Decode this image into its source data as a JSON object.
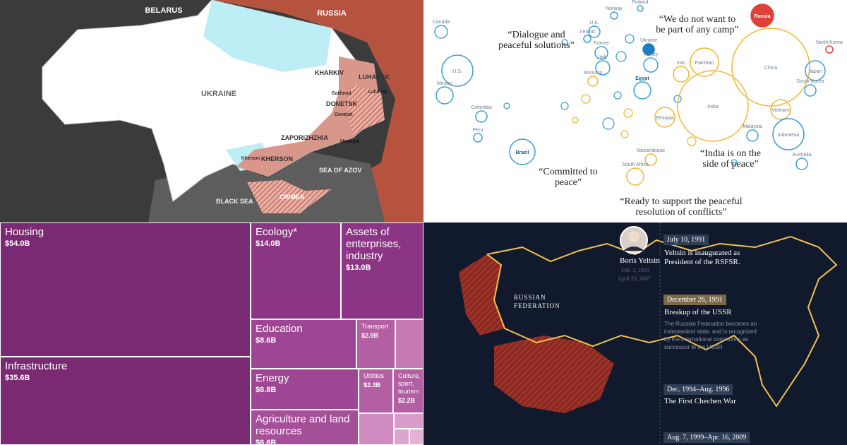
{
  "ukraine_map": {
    "labels": [
      "BELARUS",
      "RUSSIA",
      "UKRAINE",
      "KHARKIV",
      "LUHANSK",
      "Bakhmut",
      "Luhansk",
      "DONETSK",
      "Donetsk",
      "ZAPORIZHZHIA",
      "Mariupol",
      "KHERSON",
      "Kherson",
      "SEA OF AZOV",
      "BLACK SEA",
      "CRIMEA"
    ]
  },
  "un_stances": {
    "countries": [
      {
        "label": "Canada",
        "color": "#3a9fd6"
      },
      {
        "label": "U.S.",
        "color": "#3a9fd6"
      },
      {
        "label": "Mexico",
        "color": "#3a9fd6"
      },
      {
        "label": "Colombia",
        "color": "#3a9fd6"
      },
      {
        "label": "Peru",
        "color": "#3a9fd6"
      },
      {
        "label": "Brazil",
        "color": "#3a9fd6"
      },
      {
        "label": "Morocco",
        "color": "#f2b632"
      },
      {
        "label": "Ireland",
        "color": "#3a9fd6"
      },
      {
        "label": "U.K.",
        "color": "#3a9fd6"
      },
      {
        "label": "France",
        "color": "#3a9fd6"
      },
      {
        "label": "Italy",
        "color": "#3a9fd6"
      },
      {
        "label": "Norway",
        "color": "#3a9fd6"
      },
      {
        "label": "Finland",
        "color": "#3a9fd6"
      },
      {
        "label": "Ukraine",
        "color": "#1a7fc4"
      },
      {
        "label": "Turkey",
        "color": "#3a9fd6"
      },
      {
        "label": "Egypt",
        "color": "#3a9fd6"
      },
      {
        "label": "Iran",
        "color": "#f2b632"
      },
      {
        "label": "Pakistan",
        "color": "#f2b632"
      },
      {
        "label": "India",
        "color": "#f2b632"
      },
      {
        "label": "China",
        "color": "#f2b632"
      },
      {
        "label": "Russia",
        "color": "#e0413a"
      },
      {
        "label": "North Korea",
        "color": "#e0413a"
      },
      {
        "label": "Japan",
        "color": "#3a9fd6"
      },
      {
        "label": "South Korea",
        "color": "#3a9fd6"
      },
      {
        "label": "Vietnam",
        "color": "#f2b632"
      },
      {
        "label": "Indonesia",
        "color": "#3a9fd6"
      },
      {
        "label": "Malaysia",
        "color": "#3a9fd6"
      },
      {
        "label": "Australia",
        "color": "#3a9fd6"
      },
      {
        "label": "Ethiopia",
        "color": "#f2b632"
      },
      {
        "label": "Mozambique",
        "color": "#f2b632"
      },
      {
        "label": "South Africa",
        "color": "#f2b632"
      }
    ],
    "quotes": [
      "“Dialogue and peaceful solutions”",
      "“We do not want to be part of any camp”",
      "“Committed to peace”",
      "“India is on the side of peace”",
      "“Ready to support the peaceful resolution of conflicts”"
    ]
  },
  "chart_data": {
    "type": "treemap",
    "categories": [
      "Housing",
      "Infrastructure",
      "Ecology*",
      "Assets of enterprises, industry",
      "Education",
      "Transport",
      "Energy",
      "Utilities",
      "Culture, sport, tourism",
      "Agriculture and land resources"
    ],
    "values": [
      54.0,
      35.6,
      14.0,
      13.0,
      8.6,
      2.9,
      6.8,
      2.3,
      2.2,
      6.6
    ],
    "value_labels": [
      "$54.0B",
      "$35.6B",
      "$14.0B",
      "$13.0B",
      "$8.6B",
      "$2.9B",
      "$6.8B",
      "$2.3B",
      "$2.2B",
      "$6.6B"
    ],
    "colors": [
      "#7a2a72",
      "#7a2a72",
      "#8c3585",
      "#8c3585",
      "#9e4593",
      "#b35fa3",
      "#9e4593",
      "#b35fa3",
      "#b35fa3",
      "#a44f98"
    ]
  },
  "russia_timeline": {
    "person": "Boris Yeltsin",
    "person_dates": [
      "Feb. 1, 1931",
      "April 23, 2007"
    ],
    "map_label": "RUSSIAN FEDERATION",
    "events": [
      {
        "date": "July 10, 1991",
        "title": "Yeltsin is inaugurated as President of the RSFSR."
      },
      {
        "date": "December 26, 1991",
        "title": "Breakup of the USSR",
        "text": "The Russian Federation becomes an independent state, and is recognized by the international community as successor to the USSR"
      },
      {
        "date": "Dec. 1994–Aug. 1996",
        "title": "The First Chechen War"
      },
      {
        "date": "Aug. 7, 1999–Apr. 16, 2009"
      }
    ]
  }
}
